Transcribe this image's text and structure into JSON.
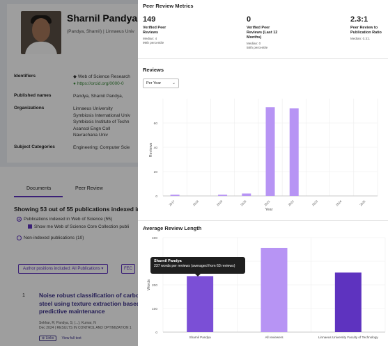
{
  "background": {
    "name": "Sharnil Pandya",
    "subtitle": "(Pandya, Sharnil) | Linnaeus Univ",
    "rows": {
      "identifiers_label": "Identifiers",
      "identifiers_value1": "Web of Science Research",
      "identifiers_value2": "https://orcid.org/0000-0",
      "published_names_label": "Published names",
      "published_names_value": "Pandya, Sharnil     Pandya,",
      "organizations_label": "Organizations",
      "organizations_values": [
        "Linnaeus University",
        "Symbiosis International Univ",
        "Symbiosis Institute of Techn",
        "Asansol Engn Coll",
        "Navrachana Univ"
      ],
      "subject_label": "Subject Categories",
      "subject_value": "Engineering; Computer Scie"
    },
    "tabs": [
      "Documents",
      "Peer Review"
    ],
    "showing": "Showing 53 out of 55 publications indexed in",
    "options": {
      "indexed": "Publications indexed in Web of Science (55)",
      "show_core": "Show me Web of Science Core Collection publi",
      "non_indexed": "Non-indexed publications (10)"
    },
    "author_positions_button": "Author positions included: All Publications ▾",
    "fec_button": "FEC",
    "publication": {
      "number": "1",
      "title_lines": [
        "Noise robust classification of carbo",
        "steel using texture extraction based",
        "predictive maintenance"
      ],
      "authors": "Sekhar, R; Pandya, S; (...); Kumar, N",
      "meta": "Dec 2024 | RESULTS IN CONTROL AND OPTIMIZATION 1",
      "actions": [
        "⊕ Links",
        "View full text"
      ]
    }
  },
  "panel": {
    "title": "Peer Review Metrics",
    "metrics": [
      {
        "value": "149",
        "label_lines": [
          "Verified Peer",
          "Reviews"
        ],
        "sub_lines": [
          "Median: 4",
          "99th percentile"
        ]
      },
      {
        "value": "0",
        "label_lines": [
          "Verified Peer",
          "Reviews (Last 12",
          "Months)"
        ],
        "sub_lines": [
          "Median: 0",
          "58th percentile"
        ]
      },
      {
        "value": "2.3:1",
        "label_lines": [
          "Peer Review to",
          "Publication Ratio"
        ],
        "sub_lines": [
          "Median: 0.3:1"
        ]
      }
    ],
    "reviews_title": "Reviews",
    "dropdown_value": "Per Year",
    "avg_title": "Average Review Length",
    "tooltip": {
      "title": "Sharnil Pandya",
      "text": "237 words per reviews (averaged from 63 reviews)"
    },
    "colors": {
      "accent": "#5e33bf",
      "bar_light": "#b794f4",
      "bar_dark": "#7b4fd6"
    }
  },
  "chart_data": [
    {
      "type": "bar",
      "title": "Reviews",
      "xlabel": "Year",
      "ylabel": "Reviews",
      "categories": [
        "2017",
        "2018",
        "2019",
        "2020",
        "2021",
        "2022",
        "2023",
        "2024",
        "2025"
      ],
      "values": [
        1,
        0,
        1,
        2,
        73,
        72,
        0,
        0,
        0
      ],
      "ylim": [
        0,
        80
      ],
      "yticks": [
        0,
        20,
        40,
        60
      ],
      "grid": true
    },
    {
      "type": "bar",
      "title": "Average Review Length",
      "xlabel": "",
      "ylabel": "Words",
      "categories": [
        "Sharnil Pandya",
        "All reviewers",
        "Linnaeus University Faculty of Technology"
      ],
      "values": [
        237,
        356,
        252
      ],
      "ylim": [
        0,
        400
      ],
      "yticks": [
        0,
        100,
        200,
        300,
        400
      ],
      "grid": true
    }
  ]
}
